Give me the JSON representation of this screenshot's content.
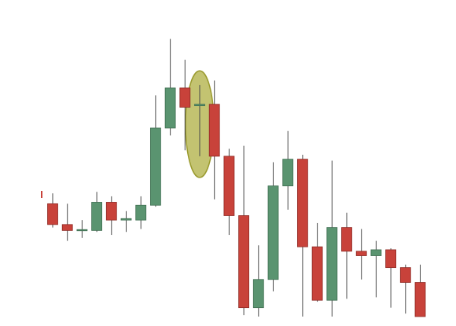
{
  "colors": {
    "background": "#ffffff",
    "bullish": "#5a9470",
    "bearish": "#c8423a",
    "wick": "#4a4a4a",
    "highlight_fill": "#b8b858",
    "highlight_stroke": "#9a9a2e"
  },
  "chart_data": {
    "type": "candlestick",
    "title": "",
    "xlabel": "",
    "ylabel": "",
    "axes_visible": false,
    "grid": false,
    "ylim": [
      0,
      100
    ],
    "candles": [
      {
        "open": 38.0,
        "high": 41.5,
        "low": 30.0,
        "close": 31.0
      },
      {
        "open": 31.0,
        "high": 38.0,
        "low": 25.5,
        "close": 29.0
      },
      {
        "open": 29.0,
        "high": 32.5,
        "low": 26.5,
        "close": 29.3
      },
      {
        "open": 29.0,
        "high": 42.0,
        "low": 28.5,
        "close": 38.5
      },
      {
        "open": 38.5,
        "high": 40.5,
        "low": 27.5,
        "close": 32.5
      },
      {
        "open": 32.5,
        "high": 35.5,
        "low": 28.5,
        "close": 33.0
      },
      {
        "open": 32.5,
        "high": 40.5,
        "low": 29.5,
        "close": 37.5
      },
      {
        "open": 37.5,
        "high": 74.5,
        "low": 37.0,
        "close": 63.5
      },
      {
        "open": 63.5,
        "high": 93.5,
        "low": 61.0,
        "close": 77.0
      },
      {
        "open": 77.0,
        "high": 86.5,
        "low": 56.0,
        "close": 70.5
      },
      {
        "open": 71.0,
        "high": 78.0,
        "low": 54.0,
        "close": 71.5
      },
      {
        "open": 71.5,
        "high": 79.5,
        "low": 39.5,
        "close": 54.0
      },
      {
        "open": 54.0,
        "high": 56.5,
        "low": 27.5,
        "close": 34.0
      },
      {
        "open": 34.0,
        "high": 57.5,
        "low": 0.5,
        "close": 3.0
      },
      {
        "open": 3.0,
        "high": 24.0,
        "low": 0.0,
        "close": 12.5
      },
      {
        "open": 12.5,
        "high": 52.0,
        "low": 8.5,
        "close": 44.0
      },
      {
        "open": 44.0,
        "high": 62.5,
        "low": 36.0,
        "close": 53.0
      },
      {
        "open": 53.0,
        "high": 54.5,
        "low": 0.0,
        "close": 23.5
      },
      {
        "open": 23.5,
        "high": 31.5,
        "low": 5.0,
        "close": 5.5
      },
      {
        "open": 5.5,
        "high": 52.5,
        "low": 0.0,
        "close": 30.0
      },
      {
        "open": 30.0,
        "high": 35.0,
        "low": 6.0,
        "close": 22.0
      },
      {
        "open": 22.0,
        "high": 29.5,
        "low": 12.5,
        "close": 20.5
      },
      {
        "open": 20.5,
        "high": 25.5,
        "low": 6.5,
        "close": 22.5
      },
      {
        "open": 22.5,
        "high": 23.0,
        "low": 3.0,
        "close": 16.5
      },
      {
        "open": 16.5,
        "high": 17.5,
        "low": 1.0,
        "close": 11.5
      },
      {
        "open": 11.5,
        "high": 17.5,
        "low": 0.0,
        "close": 0.0
      }
    ],
    "highlight": {
      "shape": "ellipse",
      "candle_index": 10
    }
  }
}
